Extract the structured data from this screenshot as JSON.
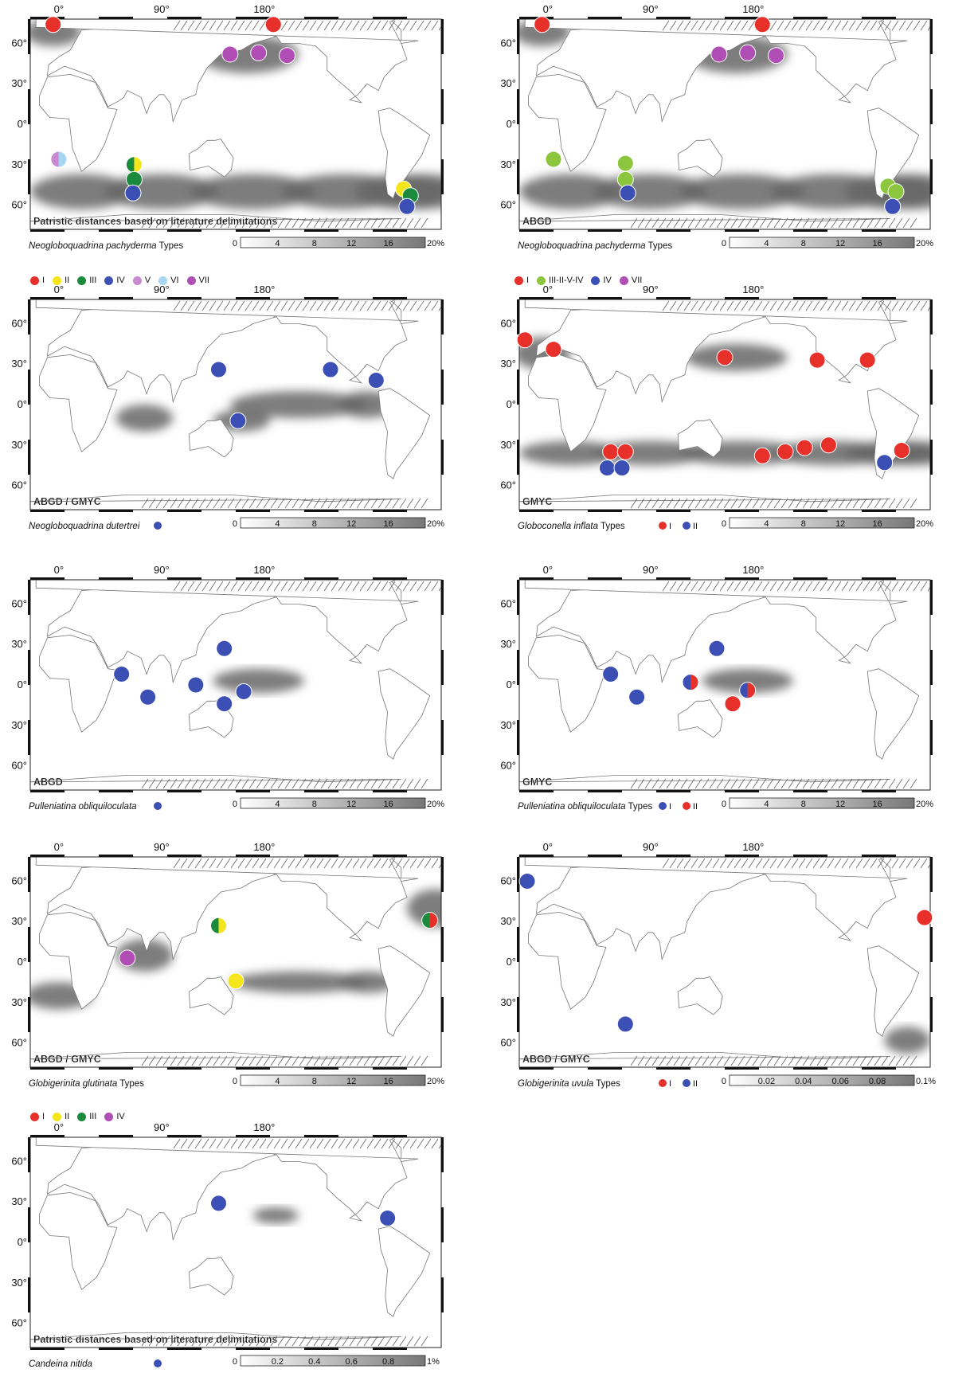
{
  "colors": {
    "red": "#e8302b",
    "yellow": "#f4e51c",
    "dkgreen": "#1a8a3c",
    "blue": "#3c4fb5",
    "lilac": "#c88ad0",
    "ltblue": "#a6d6f2",
    "purple": "#b04eb6",
    "ltgreen": "#8cc63f",
    "shade": "#666666"
  },
  "axis": {
    "lon_labels": [
      "0°",
      "90°",
      "180°"
    ],
    "lat_labels": [
      "60°",
      "30°",
      "0°",
      "30°",
      "60°"
    ]
  },
  "panels": [
    {
      "id": "p1",
      "tag": "Patristic distances based on literature delimitations",
      "caption_italic": "Neogloboquadrina pachyderma",
      "caption_rest": " Types",
      "scale": [
        "0",
        "4",
        "8",
        "12",
        "16",
        "20%"
      ],
      "legend": [],
      "shade": [
        [
          "band",
          -50,
          26
        ],
        [
          "nPac",
          52,
          14
        ],
        [
          "nAtl",
          68,
          10
        ]
      ],
      "dots": [
        {
          "lon": -5,
          "lat": 74,
          "c": [
            "red"
          ]
        },
        {
          "lon": -172,
          "lat": 74,
          "c": [
            "red"
          ]
        },
        {
          "lon": 150,
          "lat": 52,
          "c": [
            "purple"
          ]
        },
        {
          "lon": 175,
          "lat": 53,
          "c": [
            "purple"
          ]
        },
        {
          "lon": 200,
          "lat": 51,
          "c": [
            "purple"
          ]
        },
        {
          "lon": 0,
          "lat": -26,
          "c": [
            "lilac",
            "ltblue"
          ]
        },
        {
          "lon": 66,
          "lat": -30,
          "c": [
            "dkgreen",
            "yellow"
          ]
        },
        {
          "lon": 66,
          "lat": -41,
          "c": [
            "dkgreen"
          ]
        },
        {
          "lon": 65,
          "lat": -51,
          "c": [
            "blue"
          ]
        },
        {
          "lon": -58,
          "lat": -48,
          "c": [
            "yellow"
          ]
        },
        {
          "lon": -52,
          "lat": -53,
          "c": [
            "dkgreen"
          ]
        },
        {
          "lon": -55,
          "lat": -61,
          "c": [
            "blue"
          ]
        }
      ]
    },
    {
      "id": "p2",
      "tag": "ABGD",
      "caption_italic": "Neogloboquadrina pachyderma",
      "caption_rest": " Types",
      "scale": [
        "0",
        "4",
        "8",
        "12",
        "16",
        "20%"
      ],
      "legend": [],
      "shade": [
        [
          "band",
          -50,
          26
        ],
        [
          "nPac",
          52,
          14
        ],
        [
          "nAtl",
          68,
          10
        ]
      ],
      "dots": [
        {
          "lon": -5,
          "lat": 74,
          "c": [
            "red"
          ]
        },
        {
          "lon": -172,
          "lat": 74,
          "c": [
            "red"
          ]
        },
        {
          "lon": 150,
          "lat": 52,
          "c": [
            "purple"
          ]
        },
        {
          "lon": 175,
          "lat": 53,
          "c": [
            "purple"
          ]
        },
        {
          "lon": 200,
          "lat": 51,
          "c": [
            "purple"
          ]
        },
        {
          "lon": 5,
          "lat": -26,
          "c": [
            "ltgreen"
          ]
        },
        {
          "lon": 68,
          "lat": -29,
          "c": [
            "ltgreen"
          ]
        },
        {
          "lon": 68,
          "lat": -41,
          "c": [
            "ltgreen"
          ]
        },
        {
          "lon": 70,
          "lat": -51,
          "c": [
            "blue"
          ]
        },
        {
          "lon": -62,
          "lat": -46,
          "c": [
            "ltgreen"
          ]
        },
        {
          "lon": -55,
          "lat": -50,
          "c": [
            "ltgreen"
          ]
        },
        {
          "lon": -58,
          "lat": -61,
          "c": [
            "blue"
          ]
        }
      ]
    },
    {
      "id": "p3",
      "tag": "ABGD / GMYC",
      "caption_italic": "Neogloboquadrina dutertrei",
      "caption_rest": "",
      "scale": [
        "0",
        "4",
        "8",
        "12",
        "16",
        "20%"
      ],
      "legend": [
        {
          "c": "blue",
          "t": ""
        }
      ],
      "shade": [
        [
          "ePac",
          0,
          10
        ],
        [
          "wPacS",
          -12,
          8
        ],
        [
          "ioS",
          -10,
          10
        ]
      ],
      "dots": [
        {
          "lon": -82,
          "lat": 18,
          "c": [
            "blue"
          ]
        },
        {
          "lon": 140,
          "lat": 26,
          "c": [
            "blue"
          ]
        },
        {
          "lon": 157,
          "lat": -12,
          "c": [
            "blue"
          ]
        },
        {
          "lon": -122,
          "lat": 26,
          "c": [
            "blue"
          ]
        }
      ]
    },
    {
      "id": "p4",
      "tag": "GMYC",
      "caption_italic": "Globoconella inflata",
      "caption_rest": " Types",
      "scale": [
        "0",
        "4",
        "8",
        "12",
        "16",
        "20%"
      ],
      "legend": [
        {
          "c": "red",
          "t": "I"
        },
        {
          "c": "blue",
          "t": "II"
        }
      ],
      "shade": [
        [
          "band",
          -36,
          18
        ],
        [
          "nPac",
          35,
          10
        ],
        [
          "nAtl",
          38,
          12
        ]
      ],
      "dots": [
        {
          "lon": -80,
          "lat": 33,
          "c": [
            "red"
          ]
        },
        {
          "lon": -20,
          "lat": 48,
          "c": [
            "red"
          ]
        },
        {
          "lon": 5,
          "lat": 41,
          "c": [
            "red"
          ]
        },
        {
          "lon": 155,
          "lat": 35,
          "c": [
            "red"
          ]
        },
        {
          "lon": -124,
          "lat": 33,
          "c": [
            "red"
          ]
        },
        {
          "lon": -50,
          "lat": -34,
          "c": [
            "red"
          ]
        },
        {
          "lon": 55,
          "lat": -35,
          "c": [
            "red"
          ]
        },
        {
          "lon": 68,
          "lat": -35,
          "c": [
            "red"
          ]
        },
        {
          "lon": 188,
          "lat": -38,
          "c": [
            "red"
          ]
        },
        {
          "lon": 208,
          "lat": -35,
          "c": [
            "red"
          ]
        },
        {
          "lon": 225,
          "lat": -32,
          "c": [
            "red"
          ]
        },
        {
          "lon": 246,
          "lat": -30,
          "c": [
            "red"
          ]
        },
        {
          "lon": -65,
          "lat": -43,
          "c": [
            "blue"
          ]
        },
        {
          "lon": 52,
          "lat": -47,
          "c": [
            "blue"
          ]
        },
        {
          "lon": 65,
          "lat": -47,
          "c": [
            "blue"
          ]
        }
      ]
    },
    {
      "id": "p5",
      "tag": "ABGD",
      "caption_italic": "Pulleniatina obliquiloculata",
      "caption_rest": "",
      "scale": [
        "0",
        "4",
        "8",
        "12",
        "16",
        "20%"
      ],
      "legend": [
        {
          "c": "blue",
          "t": ""
        }
      ],
      "shade": [
        [
          "wPacE",
          3,
          9
        ]
      ],
      "dots": [
        {
          "lon": 55,
          "lat": 8,
          "c": [
            "blue"
          ]
        },
        {
          "lon": 78,
          "lat": -9,
          "c": [
            "blue"
          ]
        },
        {
          "lon": 120,
          "lat": 0,
          "c": [
            "blue"
          ]
        },
        {
          "lon": 145,
          "lat": 27,
          "c": [
            "blue"
          ]
        },
        {
          "lon": 145,
          "lat": -14,
          "c": [
            "blue"
          ]
        },
        {
          "lon": 162,
          "lat": -5,
          "c": [
            "blue"
          ]
        }
      ]
    },
    {
      "id": "p6",
      "tag": "GMYC",
      "caption_italic": "Pulleniatina obliquiloculata",
      "caption_rest": " Types",
      "scale": [
        "0",
        "4",
        "8",
        "12",
        "16",
        "20%"
      ],
      "legend": [
        {
          "c": "blue",
          "t": "I"
        },
        {
          "c": "red",
          "t": "II"
        }
      ],
      "shade": [
        [
          "wPacE",
          3,
          9
        ]
      ],
      "dots": [
        {
          "lon": 55,
          "lat": 8,
          "c": [
            "blue"
          ]
        },
        {
          "lon": 78,
          "lat": -9,
          "c": [
            "blue"
          ]
        },
        {
          "lon": 125,
          "lat": 2,
          "c": [
            "blue",
            "red"
          ]
        },
        {
          "lon": 148,
          "lat": 27,
          "c": [
            "blue"
          ]
        },
        {
          "lon": 162,
          "lat": -14,
          "c": [
            "red"
          ]
        },
        {
          "lon": 175,
          "lat": -4,
          "c": [
            "blue",
            "red"
          ]
        }
      ]
    },
    {
      "id": "p7",
      "tag": "ABGD / GMYC",
      "caption_italic": "Globigerinita glutinata",
      "caption_rest": " Types",
      "scale": [
        "0",
        "4",
        "8",
        "12",
        "16",
        "20%"
      ],
      "legend": [],
      "shade": [
        [
          "ePac",
          -15,
          8
        ],
        [
          "natl",
          40,
          14
        ],
        [
          "ioS",
          5,
          12
        ],
        [
          "sAtl",
          -25,
          10
        ]
      ],
      "dots": [
        {
          "lon": -35,
          "lat": 31,
          "c": [
            "dkgreen",
            "red"
          ]
        },
        {
          "lon": 140,
          "lat": 27,
          "c": [
            "dkgreen",
            "yellow"
          ]
        },
        {
          "lon": 60,
          "lat": 3,
          "c": [
            "purple"
          ]
        },
        {
          "lon": 155,
          "lat": -14,
          "c": [
            "yellow"
          ]
        }
      ]
    },
    {
      "id": "p8",
      "tag": "ABGD / GMYC",
      "caption_italic": "Globigerinita uvula",
      "caption_rest": " Types",
      "scale": [
        "0",
        "0.02",
        "0.04",
        "0.06",
        "0.08",
        "0.1%"
      ],
      "legend": [
        {
          "c": "red",
          "t": "I"
        },
        {
          "c": "blue",
          "t": "II"
        }
      ],
      "shade": [
        [
          "sw",
          -58,
          10
        ]
      ],
      "dots": [
        {
          "lon": -18,
          "lat": 60,
          "c": [
            "blue"
          ]
        },
        {
          "lon": -30,
          "lat": 33,
          "c": [
            "red"
          ]
        },
        {
          "lon": 68,
          "lat": -46,
          "c": [
            "blue"
          ]
        }
      ]
    },
    {
      "id": "p9",
      "tag": "Patristic distances based on literature delimitations",
      "caption_italic": "Candeina nitida",
      "caption_rest": "",
      "scale": [
        "0",
        "0.2",
        "0.4",
        "0.6",
        "0.8",
        "1%"
      ],
      "legend": [
        {
          "c": "blue",
          "t": ""
        }
      ],
      "shade": [
        [
          "nPacW",
          20,
          6
        ]
      ],
      "dots": [
        {
          "lon": -72,
          "lat": 18,
          "c": [
            "blue"
          ]
        },
        {
          "lon": 140,
          "lat": 29,
          "c": [
            "blue"
          ]
        }
      ]
    }
  ],
  "top_legends": {
    "a": [
      {
        "c": "red",
        "t": "I"
      },
      {
        "c": "yellow",
        "t": "II"
      },
      {
        "c": "dkgreen",
        "t": "III"
      },
      {
        "c": "blue",
        "t": "IV"
      },
      {
        "c": "lilac",
        "t": "V"
      },
      {
        "c": "ltblue",
        "t": "VI"
      },
      {
        "c": "purple",
        "t": "VII"
      }
    ],
    "b": [
      {
        "c": "red",
        "t": "I"
      },
      {
        "c": "ltgreen",
        "t": "III-II-V-IV"
      },
      {
        "c": "blue",
        "t": "IV"
      },
      {
        "c": "purple",
        "t": "VII"
      }
    ],
    "c": [
      {
        "c": "red",
        "t": "I"
      },
      {
        "c": "yellow",
        "t": "II"
      },
      {
        "c": "dkgreen",
        "t": "III"
      },
      {
        "c": "purple",
        "t": "IV"
      }
    ]
  }
}
